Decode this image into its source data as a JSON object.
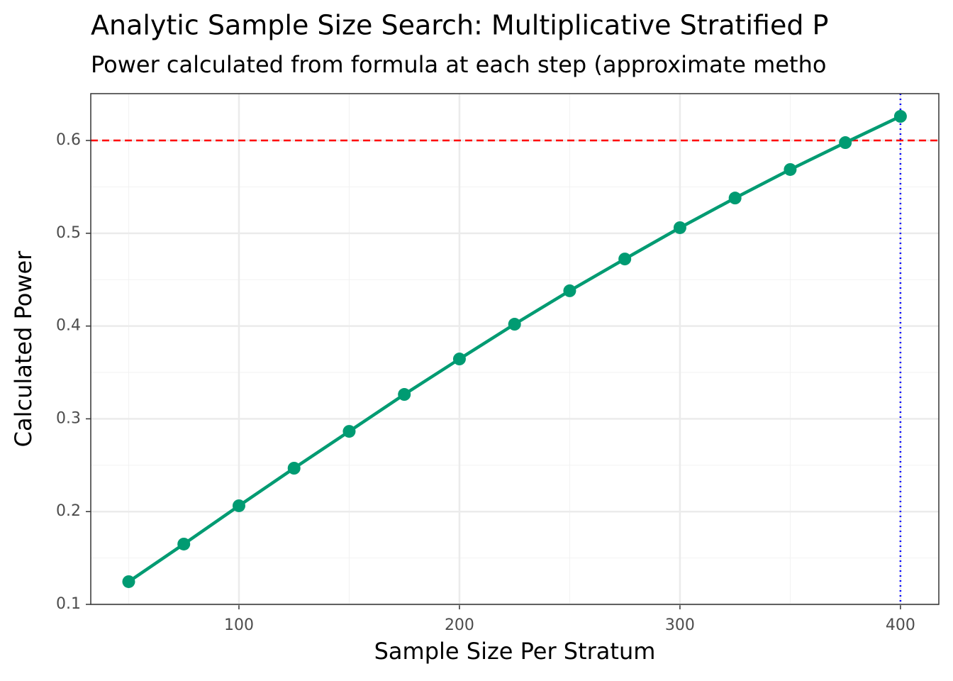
{
  "chart_data": {
    "type": "line",
    "title": "Analytic Sample Size Search: Multiplicative Stratified P",
    "subtitle": "Power calculated from formula at each step (approximate metho",
    "x_label": "Sample Size Per Stratum",
    "y_label": "Calculated Power",
    "x": [
      50,
      75,
      100,
      125,
      150,
      175,
      200,
      225,
      250,
      275,
      300,
      325,
      350,
      375,
      400
    ],
    "series": [
      {
        "name": "Calculated Power",
        "color": "#009b72",
        "values": [
          0.1245,
          0.165,
          0.2063,
          0.2468,
          0.2865,
          0.3263,
          0.3645,
          0.402,
          0.438,
          0.4723,
          0.506,
          0.538,
          0.5687,
          0.5977,
          0.626
        ]
      }
    ],
    "xlim": [
      32.8,
      417.4
    ],
    "ylim": [
      0.1,
      0.6505
    ],
    "xticks": [
      100,
      200,
      300,
      400
    ],
    "yticks": [
      0.1,
      0.2,
      0.3,
      0.4,
      0.5,
      0.6
    ],
    "x_minor_ticks": [
      50,
      150,
      250,
      350
    ],
    "y_minor_ticks": [
      0.15,
      0.25,
      0.35,
      0.45,
      0.55
    ],
    "hline": {
      "value": 0.6,
      "color": "#ff0000"
    },
    "vline": {
      "value": 400,
      "color": "#0000ff"
    },
    "grid": true
  }
}
